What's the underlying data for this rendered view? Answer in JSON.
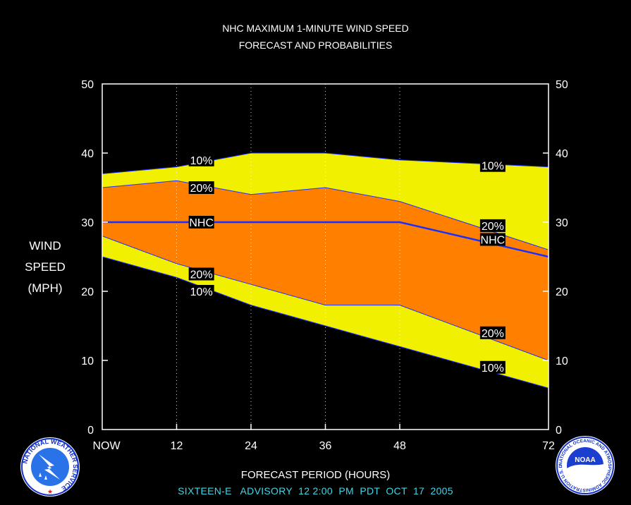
{
  "title_line1": "NHC MAXIMUM 1-MINUTE WIND SPEED",
  "title_line2": "FORECAST AND PROBABILITIES",
  "ylabel_lines": [
    "WIND",
    "SPEED",
    "(MPH)"
  ],
  "xlabel": "FORECAST PERIOD (HOURS)",
  "advisory": "SIXTEEN-E   ADVISORY  12 2:00  PM  PDT  OCT  17  2005",
  "colors": {
    "outer_band": "#f0f000",
    "inner_band": "#ff8000",
    "nhc_line": "#1a2fff",
    "edge_line": "#1a2fff",
    "background": "#000000"
  },
  "logos": {
    "left": "nws-logo",
    "right": "noaa-logo",
    "left_text": "NATIONAL WEATHER SERVICE",
    "right_text": "NATIONAL OCEANIC AND ATMOSPHERIC ADMINISTRATION U.S. DEPARTMENT OF COMMERCE",
    "right_center": "NOAA"
  },
  "chart_data": {
    "type": "area",
    "x": [
      0,
      12,
      24,
      36,
      48,
      72
    ],
    "xticks": [
      0,
      12,
      24,
      36,
      48,
      72
    ],
    "xtick_labels": [
      "NOW",
      "12",
      "24",
      "36",
      "48",
      "72"
    ],
    "xlim": [
      0,
      72
    ],
    "ylim": [
      0,
      50
    ],
    "yticks": [
      0,
      10,
      20,
      30,
      40,
      50
    ],
    "ytick_labels": [
      "0",
      "10",
      "20",
      "30",
      "40",
      "50"
    ],
    "grid": "vertical dotted at 12, 24, 36, 48",
    "series": [
      {
        "name": "10%",
        "role": "upper",
        "values": [
          37,
          38,
          40,
          40,
          39,
          38
        ]
      },
      {
        "name": "20%",
        "role": "upper",
        "values": [
          35,
          36,
          34,
          35,
          33,
          26
        ]
      },
      {
        "name": "NHC",
        "role": "forecast",
        "values": [
          30,
          30,
          30,
          30,
          30,
          25
        ]
      },
      {
        "name": "20%",
        "role": "lower",
        "values": [
          28,
          24,
          21,
          18,
          18,
          10
        ]
      },
      {
        "name": "10%",
        "role": "lower",
        "values": [
          25,
          22,
          18,
          15,
          12,
          6
        ]
      }
    ],
    "annotations": [
      {
        "text": "10%",
        "x": 16,
        "y": 39
      },
      {
        "text": "20%",
        "x": 16,
        "y": 35
      },
      {
        "text": "NHC",
        "x": 16,
        "y": 30
      },
      {
        "text": "20%",
        "x": 16,
        "y": 22.5
      },
      {
        "text": "10%",
        "x": 16,
        "y": 20
      },
      {
        "text": "10%",
        "x": 63,
        "y": 38.2
      },
      {
        "text": "20%",
        "x": 63,
        "y": 29.5
      },
      {
        "text": "NHC",
        "x": 63,
        "y": 27.5
      },
      {
        "text": "20%",
        "x": 63,
        "y": 14
      },
      {
        "text": "10%",
        "x": 63,
        "y": 9
      }
    ]
  }
}
